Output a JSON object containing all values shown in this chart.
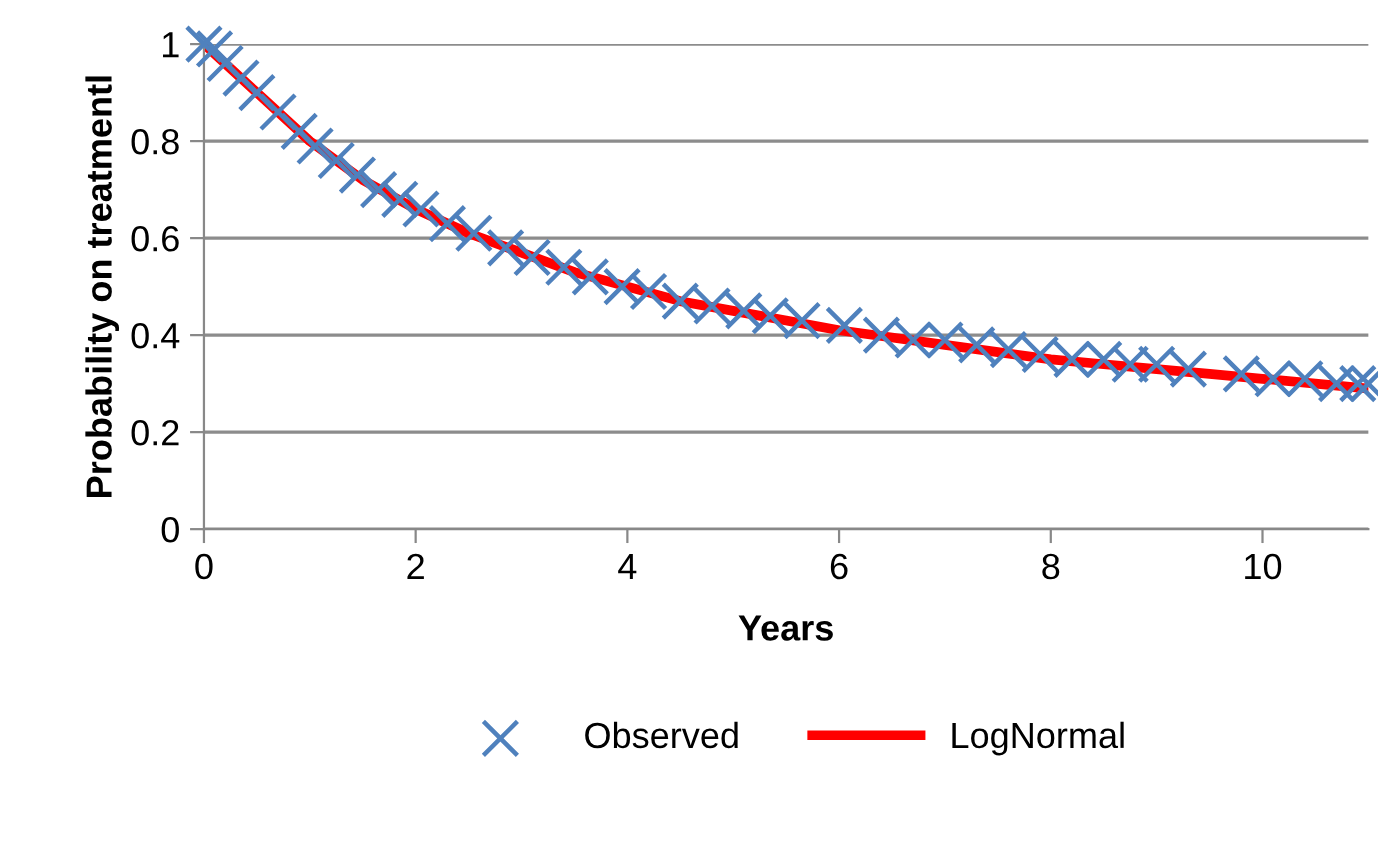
{
  "chart_data": {
    "type": "line",
    "xlabel": "Years",
    "ylabel": "Probability on treatmentl",
    "xlim": [
      0,
      11
    ],
    "xticks": [
      0,
      2,
      4,
      6,
      8,
      10
    ],
    "ylim": [
      0,
      1
    ],
    "yticks": [
      0,
      0.2,
      0.4,
      0.6,
      0.8,
      1
    ],
    "grid": "y",
    "legend": "bottom",
    "series": [
      {
        "name": "Observed",
        "type": "scatter",
        "marker": "cross",
        "color": "#4f81bd",
        "x": [
          0,
          0.1,
          0.2,
          0.35,
          0.5,
          0.7,
          0.9,
          1.05,
          1.25,
          1.45,
          1.65,
          1.85,
          2.05,
          2.3,
          2.55,
          2.85,
          3.1,
          3.4,
          3.65,
          3.95,
          4.2,
          4.5,
          4.8,
          5.1,
          5.35,
          5.65,
          6.05,
          6.4,
          6.7,
          7.0,
          7.3,
          7.6,
          7.9,
          8.2,
          8.5,
          8.75,
          9.0,
          9.3,
          9.8,
          10.1,
          10.4,
          10.7,
          10.9,
          11.0
        ],
        "values": [
          1.0,
          0.99,
          0.96,
          0.93,
          0.9,
          0.86,
          0.82,
          0.79,
          0.76,
          0.73,
          0.7,
          0.68,
          0.66,
          0.63,
          0.61,
          0.58,
          0.56,
          0.54,
          0.52,
          0.5,
          0.49,
          0.47,
          0.46,
          0.45,
          0.44,
          0.43,
          0.42,
          0.4,
          0.39,
          0.39,
          0.38,
          0.37,
          0.36,
          0.35,
          0.35,
          0.34,
          0.34,
          0.33,
          0.32,
          0.31,
          0.31,
          0.3,
          0.3,
          0.3
        ]
      },
      {
        "name": "LogNormal",
        "marker": "none",
        "line_style": "solid",
        "color": "#ff0000",
        "x": [
          0,
          0.25,
          0.5,
          1,
          1.5,
          2,
          2.5,
          3,
          3.5,
          4,
          4.5,
          5,
          5.5,
          6,
          6.5,
          7,
          7.5,
          8,
          8.5,
          9,
          9.5,
          10,
          10.5,
          11
        ],
        "values": [
          1.0,
          0.95,
          0.9,
          0.8,
          0.72,
          0.66,
          0.61,
          0.57,
          0.53,
          0.5,
          0.47,
          0.45,
          0.43,
          0.41,
          0.395,
          0.38,
          0.365,
          0.35,
          0.34,
          0.33,
          0.32,
          0.31,
          0.3,
          0.29
        ]
      }
    ]
  }
}
